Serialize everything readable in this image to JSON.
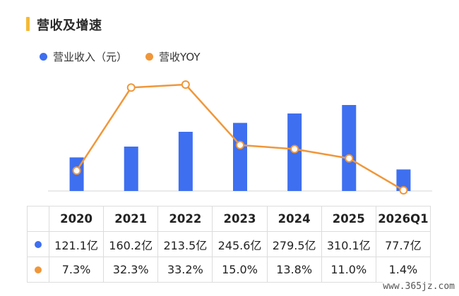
{
  "title": "营收及增速",
  "colors": {
    "title_bar": "#f5b936",
    "bar": "#3e6ff0",
    "line": "#f0973a"
  },
  "legend": [
    {
      "label": "营业收入（元）",
      "color": "#3e6ff0"
    },
    {
      "label": "营收YOY",
      "color": "#f0973a"
    }
  ],
  "chart_data": {
    "type": "bar",
    "categories": [
      "2020",
      "2021",
      "2022",
      "2023",
      "2024",
      "2025",
      "2026Q1"
    ],
    "series": [
      {
        "name": "营业收入（元）",
        "type": "bar",
        "values": [
          121.1,
          160.2,
          213.5,
          245.6,
          279.5,
          310.1,
          77.7
        ],
        "unit": "亿"
      },
      {
        "name": "营收YOY",
        "type": "line",
        "values": [
          7.3,
          32.3,
          33.2,
          15.0,
          13.8,
          11.0,
          1.4
        ],
        "unit": "%"
      }
    ],
    "grid": false,
    "legend_position": "top-left"
  },
  "table": {
    "header": [
      "2020",
      "2021",
      "2022",
      "2023",
      "2024",
      "2025",
      "2026Q1"
    ],
    "rows": [
      {
        "color": "#3e6ff0",
        "cells": [
          "121.1亿",
          "160.2亿",
          "213.5亿",
          "245.6亿",
          "279.5亿",
          "310.1亿",
          "77.7亿"
        ]
      },
      {
        "color": "#f0973a",
        "cells": [
          "7.3%",
          "32.3%",
          "33.2%",
          "15.0%",
          "13.8%",
          "11.0%",
          "1.4%"
        ]
      }
    ]
  },
  "watermark": "www.365jz.com"
}
